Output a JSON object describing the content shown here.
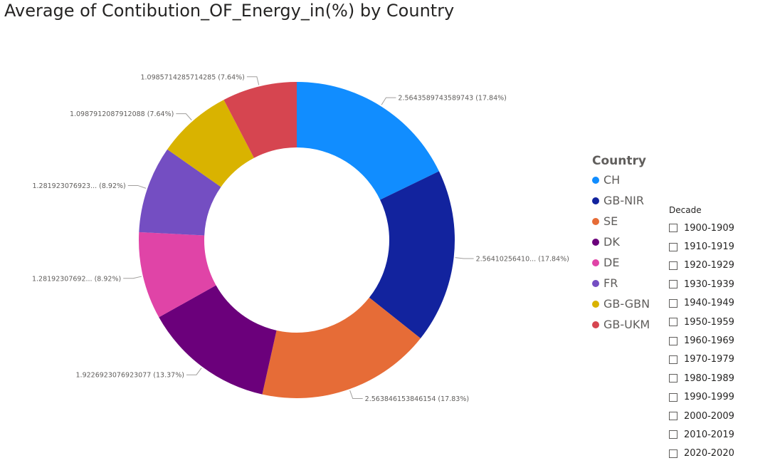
{
  "chart_data": {
    "type": "pie",
    "subtype": "donut",
    "title": "Average of Contibution_OF_Energy_in(%) by Country",
    "legend_title": "Country",
    "legend_position": "right",
    "slices": [
      {
        "name": "CH",
        "value": 2.5643589743589743,
        "label": "2.5643589743589743 (17.84%)",
        "color": "#118dff"
      },
      {
        "name": "GB-NIR",
        "value": 2.5641025641025643,
        "label": "2.56410256410... (17.84%)",
        "color": "#12239e"
      },
      {
        "name": "SE",
        "value": 2.563846153846154,
        "label": "2.563846153846154 (17.83%)",
        "color": "#e66c37"
      },
      {
        "name": "DK",
        "value": 1.9226923076923077,
        "label": "1.9226923076923077 (13.37%)",
        "color": "#6b007b"
      },
      {
        "name": "DE",
        "value": 1.281923076923077,
        "label": "1.28192307692... (8.92%)",
        "color": "#e044a7"
      },
      {
        "name": "FR",
        "value": 1.281923076923077,
        "label": "1.281923076923... (8.92%)",
        "color": "#744ec2"
      },
      {
        "name": "GB-GBN",
        "value": 1.0987912087912088,
        "label": "1.0987912087912088 (7.64%)",
        "color": "#d9b300"
      },
      {
        "name": "GB-UKM",
        "value": 1.0985714285714285,
        "label": "1.0985714285714285 (7.64%)",
        "color": "#d64550"
      }
    ]
  },
  "slicer": {
    "title": "Decade",
    "items": [
      "1900-1909",
      "1910-1919",
      "1920-1929",
      "1930-1939",
      "1940-1949",
      "1950-1959",
      "1960-1969",
      "1970-1979",
      "1980-1989",
      "1990-1999",
      "2000-2009",
      "2010-2019",
      "2020-2020"
    ]
  }
}
